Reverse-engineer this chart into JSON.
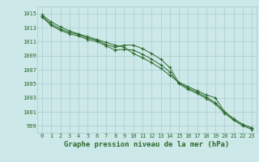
{
  "series": [
    {
      "x": [
        0,
        1,
        2,
        3,
        4,
        5,
        6,
        7,
        8,
        9,
        10,
        11,
        12,
        13,
        14,
        15,
        16,
        17,
        18,
        19,
        20,
        21,
        22,
        23
      ],
      "y": [
        1014.8,
        1013.8,
        1013.1,
        1012.5,
        1012.1,
        1011.7,
        1011.3,
        1010.9,
        1010.5,
        1010.2,
        1009.3,
        1008.7,
        1008.0,
        1007.2,
        1006.2,
        1005.2,
        1004.6,
        1004.0,
        1003.4,
        1003.0,
        1001.0,
        1000.0,
        999.2,
        998.7
      ],
      "color": "#2d6a2d",
      "marker": "+"
    },
    {
      "x": [
        0,
        1,
        2,
        3,
        4,
        5,
        6,
        7,
        8,
        9,
        10,
        11,
        12,
        13,
        14,
        15,
        16,
        17,
        18,
        19,
        20,
        21,
        22,
        23
      ],
      "y": [
        1014.6,
        1013.5,
        1012.8,
        1012.3,
        1012.0,
        1011.5,
        1011.2,
        1010.6,
        1010.2,
        1010.5,
        1010.5,
        1010.0,
        1009.3,
        1008.5,
        1007.3,
        1005.1,
        1004.4,
        1003.8,
        1003.1,
        1002.3,
        1001.0,
        1000.0,
        999.2,
        998.7
      ],
      "color": "#2d6a2d",
      "marker": "+"
    },
    {
      "x": [
        0,
        1,
        2,
        3,
        4,
        5,
        6,
        7,
        8,
        9,
        10,
        11,
        12,
        13,
        14,
        15,
        16,
        17,
        18,
        19,
        20,
        21,
        22,
        23
      ],
      "y": [
        1014.5,
        1013.3,
        1012.6,
        1012.1,
        1011.8,
        1011.3,
        1011.0,
        1010.4,
        1009.8,
        1009.9,
        1009.8,
        1009.2,
        1008.5,
        1007.7,
        1006.7,
        1005.0,
        1004.2,
        1003.6,
        1002.9,
        1002.1,
        1000.8,
        999.8,
        999.0,
        998.5
      ],
      "color": "#2d6a2d",
      "marker": "+"
    }
  ],
  "bg_color": "#cce8e8",
  "grid_color": "#aacccc",
  "line_color": "#2d6a2d",
  "text_color": "#2d6a2d",
  "xlabel": "Graphe pression niveau de la mer (hPa)",
  "xlabel_fontsize": 6.5,
  "yticks": [
    999,
    1001,
    1003,
    1005,
    1007,
    1009,
    1011,
    1013,
    1015
  ],
  "xticks": [
    0,
    1,
    2,
    3,
    4,
    5,
    6,
    7,
    8,
    9,
    10,
    11,
    12,
    13,
    14,
    15,
    16,
    17,
    18,
    19,
    20,
    21,
    22,
    23
  ],
  "ylim": [
    998.0,
    1016.0
  ],
  "xlim": [
    -0.5,
    23.5
  ],
  "tick_fontsize": 5.0
}
